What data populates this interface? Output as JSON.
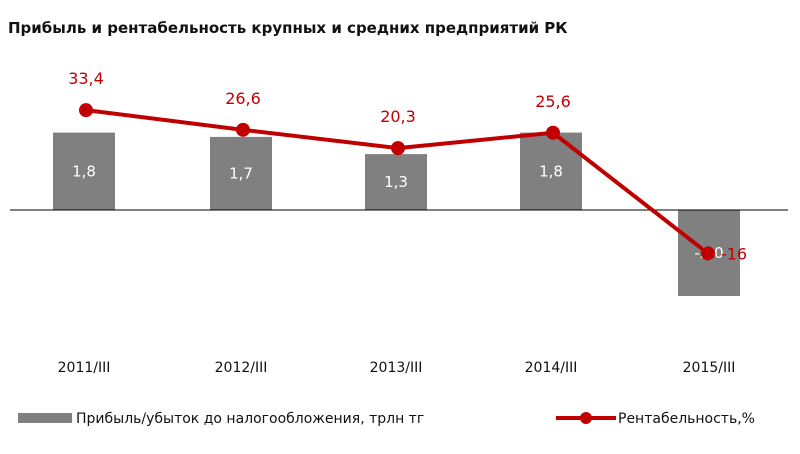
{
  "chart_data": {
    "title": "Прибыль и рентабельность крупных и средних предприятий РК",
    "categories": [
      "2011/III",
      "2012/III",
      "2013/III",
      "2014/III",
      "2015/III"
    ],
    "series": [
      {
        "name": "Прибыль/убыток до налогообложения, трлн тг",
        "type": "bar",
        "values": [
          1.8,
          1.7,
          1.3,
          1.8,
          -2.0
        ],
        "labels": [
          "1,8",
          "1,7",
          "1,3",
          "1,8",
          "-2,0"
        ],
        "color": "#808080"
      },
      {
        "name": "Рентабельность,%",
        "type": "line",
        "values": [
          33.4,
          26.6,
          20.3,
          25.6,
          -16
        ],
        "labels": [
          "33,4",
          "26,6",
          "20,3",
          "25,6",
          "-16"
        ],
        "color": "#c00000"
      }
    ],
    "legend": "bottom",
    "grid": false
  }
}
